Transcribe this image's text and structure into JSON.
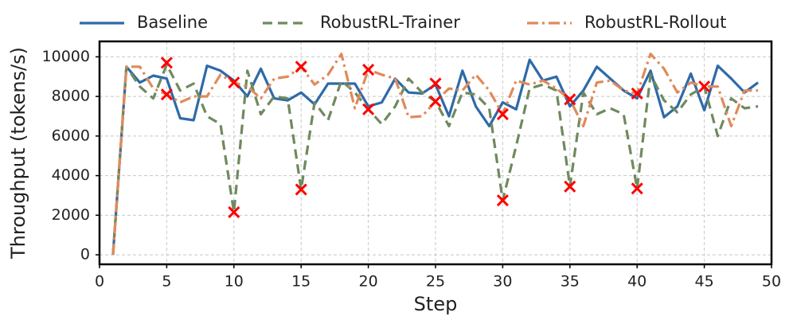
{
  "chart_data": {
    "type": "line",
    "xlabel": "Step",
    "ylabel": "Throughput (tokens/s)",
    "x": [
      1,
      2,
      3,
      4,
      5,
      6,
      7,
      8,
      9,
      10,
      11,
      12,
      13,
      14,
      15,
      16,
      17,
      18,
      19,
      20,
      21,
      22,
      23,
      24,
      25,
      26,
      27,
      28,
      29,
      30,
      31,
      32,
      33,
      34,
      35,
      36,
      37,
      38,
      39,
      40,
      41,
      42,
      43,
      44,
      45,
      46,
      47,
      48,
      49
    ],
    "series": [
      {
        "name": "Baseline",
        "color": "#2e6aa8",
        "dash": "solid",
        "values": [
          0,
          9500,
          8700,
          9050,
          8900,
          6900,
          6800,
          9550,
          9300,
          8800,
          8000,
          9400,
          7900,
          7800,
          8200,
          7600,
          8650,
          8650,
          8650,
          7500,
          7700,
          8900,
          8200,
          8150,
          8600,
          7000,
          9300,
          7500,
          6500,
          7700,
          7350,
          9850,
          8800,
          9000,
          7500,
          8300,
          9500,
          8900,
          8300,
          7900,
          9300,
          6950,
          7500,
          9150,
          7300,
          9550,
          8900,
          8200,
          8700
        ]
      },
      {
        "name": "RobustRL-Trainer",
        "color": "#6f8a5e",
        "dash": "dashed",
        "values": [
          0,
          9500,
          8500,
          7900,
          9600,
          8300,
          8650,
          7000,
          6600,
          2150,
          9300,
          7100,
          8000,
          7900,
          3300,
          7700,
          6800,
          8800,
          8200,
          7350,
          6600,
          7500,
          8900,
          8200,
          7750,
          6500,
          8200,
          8100,
          7400,
          2750,
          5500,
          8400,
          8600,
          8300,
          3450,
          8200,
          7100,
          7400,
          7100,
          3350,
          9100,
          7800,
          7200,
          8100,
          8500,
          6000,
          7900,
          7400,
          7500
        ]
      },
      {
        "name": "RobustRL-Rollout",
        "color": "#e08a5a",
        "dash": "dashdot",
        "values": [
          0,
          9500,
          9500,
          8400,
          8100,
          7700,
          8000,
          8000,
          9100,
          8700,
          8500,
          7900,
          8900,
          9000,
          9500,
          8600,
          9100,
          10150,
          7400,
          9350,
          9100,
          8900,
          6950,
          7000,
          7750,
          8400,
          8300,
          9100,
          8300,
          7100,
          8800,
          8600,
          8800,
          8400,
          7850,
          6500,
          8700,
          8800,
          8300,
          8150,
          10150,
          9400,
          8200,
          8700,
          8500,
          8500,
          6500,
          8300,
          8300
        ]
      }
    ],
    "markers": {
      "color": "#ff0000",
      "x": [
        5,
        5,
        10,
        10,
        15,
        15,
        20,
        20,
        25,
        25,
        30,
        30,
        35,
        35,
        40,
        40,
        45
      ],
      "y": [
        9700,
        8100,
        8700,
        2150,
        9500,
        3300,
        9350,
        7350,
        8650,
        7750,
        7100,
        2750,
        7850,
        3450,
        8150,
        3350,
        8500
      ]
    },
    "xlim": [
      0,
      50
    ],
    "ylim": [
      -480,
      10780
    ],
    "xticks": [
      0,
      5,
      10,
      15,
      20,
      25,
      30,
      35,
      40,
      45,
      50
    ],
    "yticks": [
      0,
      2000,
      4000,
      6000,
      8000,
      10000
    ],
    "grid": true,
    "legend": "top"
  }
}
